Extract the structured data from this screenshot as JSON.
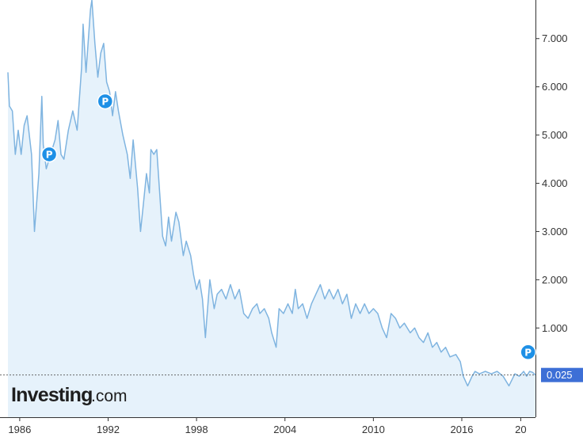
{
  "chart_data": {
    "type": "area",
    "title": "",
    "xlabel": "",
    "ylabel": "",
    "x_ticks": [
      "1986",
      "1992",
      "1998",
      "2004",
      "2010",
      "2016",
      "20"
    ],
    "y_ticks": [
      "1.000",
      "2.000",
      "3.000",
      "4.000",
      "5.000",
      "6.000",
      "7.000"
    ],
    "xlim": [
      1985.2,
      2021.0
    ],
    "ylim": [
      -0.85,
      7.8
    ],
    "grid": false,
    "last_value": 0.025,
    "last_value_label": "0.025",
    "series": [
      {
        "points": [
          [
            1985.2,
            6.3
          ],
          [
            1985.3,
            5.6
          ],
          [
            1985.5,
            5.5
          ],
          [
            1985.7,
            4.6
          ],
          [
            1985.9,
            5.1
          ],
          [
            1986.1,
            4.6
          ],
          [
            1986.3,
            5.2
          ],
          [
            1986.5,
            5.4
          ],
          [
            1986.8,
            4.6
          ],
          [
            1987.0,
            3.0
          ],
          [
            1987.3,
            4.2
          ],
          [
            1987.5,
            5.8
          ],
          [
            1987.6,
            4.8
          ],
          [
            1987.8,
            4.3
          ],
          [
            1988.1,
            4.6
          ],
          [
            1988.4,
            4.9
          ],
          [
            1988.6,
            5.3
          ],
          [
            1988.8,
            4.6
          ],
          [
            1989.0,
            4.5
          ],
          [
            1989.3,
            5.1
          ],
          [
            1989.6,
            5.5
          ],
          [
            1989.9,
            5.1
          ],
          [
            1990.2,
            6.4
          ],
          [
            1990.3,
            7.3
          ],
          [
            1990.5,
            6.3
          ],
          [
            1990.8,
            7.6
          ],
          [
            1990.9,
            7.8
          ],
          [
            1991.1,
            6.9
          ],
          [
            1991.3,
            6.2
          ],
          [
            1991.5,
            6.7
          ],
          [
            1991.7,
            6.9
          ],
          [
            1991.9,
            6.1
          ],
          [
            1992.1,
            5.9
          ],
          [
            1992.3,
            5.4
          ],
          [
            1992.5,
            5.9
          ],
          [
            1992.7,
            5.5
          ],
          [
            1993.0,
            5.0
          ],
          [
            1993.3,
            4.6
          ],
          [
            1993.5,
            4.1
          ],
          [
            1993.7,
            4.9
          ],
          [
            1994.0,
            3.9
          ],
          [
            1994.2,
            3.0
          ],
          [
            1994.4,
            3.6
          ],
          [
            1994.6,
            4.2
          ],
          [
            1994.8,
            3.8
          ],
          [
            1994.9,
            4.7
          ],
          [
            1995.1,
            4.6
          ],
          [
            1995.3,
            4.7
          ],
          [
            1995.5,
            3.8
          ],
          [
            1995.7,
            2.9
          ],
          [
            1995.9,
            2.7
          ],
          [
            1996.1,
            3.3
          ],
          [
            1996.3,
            2.8
          ],
          [
            1996.6,
            3.4
          ],
          [
            1996.8,
            3.2
          ],
          [
            1997.1,
            2.5
          ],
          [
            1997.3,
            2.8
          ],
          [
            1997.6,
            2.5
          ],
          [
            1997.8,
            2.1
          ],
          [
            1998.0,
            1.8
          ],
          [
            1998.2,
            2.0
          ],
          [
            1998.4,
            1.6
          ],
          [
            1998.6,
            0.8
          ],
          [
            1998.7,
            1.2
          ],
          [
            1998.9,
            2.0
          ],
          [
            1999.2,
            1.4
          ],
          [
            1999.4,
            1.7
          ],
          [
            1999.7,
            1.8
          ],
          [
            2000.0,
            1.6
          ],
          [
            2000.3,
            1.9
          ],
          [
            2000.6,
            1.6
          ],
          [
            2000.9,
            1.8
          ],
          [
            2001.2,
            1.3
          ],
          [
            2001.5,
            1.2
          ],
          [
            2001.8,
            1.4
          ],
          [
            2002.1,
            1.5
          ],
          [
            2002.3,
            1.3
          ],
          [
            2002.6,
            1.4
          ],
          [
            2002.9,
            1.2
          ],
          [
            2003.1,
            0.9
          ],
          [
            2003.4,
            0.6
          ],
          [
            2003.6,
            1.4
          ],
          [
            2003.9,
            1.3
          ],
          [
            2004.2,
            1.5
          ],
          [
            2004.5,
            1.3
          ],
          [
            2004.7,
            1.8
          ],
          [
            2004.9,
            1.4
          ],
          [
            2005.2,
            1.5
          ],
          [
            2005.5,
            1.2
          ],
          [
            2005.8,
            1.5
          ],
          [
            2006.1,
            1.7
          ],
          [
            2006.4,
            1.9
          ],
          [
            2006.7,
            1.6
          ],
          [
            2007.0,
            1.8
          ],
          [
            2007.3,
            1.6
          ],
          [
            2007.6,
            1.8
          ],
          [
            2007.9,
            1.5
          ],
          [
            2008.2,
            1.7
          ],
          [
            2008.5,
            1.2
          ],
          [
            2008.8,
            1.5
          ],
          [
            2009.1,
            1.3
          ],
          [
            2009.4,
            1.5
          ],
          [
            2009.7,
            1.3
          ],
          [
            2010.0,
            1.4
          ],
          [
            2010.3,
            1.3
          ],
          [
            2010.6,
            1.0
          ],
          [
            2010.9,
            0.8
          ],
          [
            2011.2,
            1.3
          ],
          [
            2011.5,
            1.2
          ],
          [
            2011.8,
            1.0
          ],
          [
            2012.1,
            1.1
          ],
          [
            2012.5,
            0.9
          ],
          [
            2012.8,
            1.0
          ],
          [
            2013.1,
            0.8
          ],
          [
            2013.4,
            0.7
          ],
          [
            2013.7,
            0.9
          ],
          [
            2014.0,
            0.6
          ],
          [
            2014.3,
            0.7
          ],
          [
            2014.6,
            0.5
          ],
          [
            2014.9,
            0.6
          ],
          [
            2015.2,
            0.4
          ],
          [
            2015.6,
            0.45
          ],
          [
            2015.9,
            0.3
          ],
          [
            2016.1,
            0.0
          ],
          [
            2016.4,
            -0.2
          ],
          [
            2016.7,
            0.0
          ],
          [
            2016.9,
            0.1
          ],
          [
            2017.2,
            0.05
          ],
          [
            2017.6,
            0.1
          ],
          [
            2018.0,
            0.05
          ],
          [
            2018.4,
            0.1
          ],
          [
            2018.8,
            0.0
          ],
          [
            2019.2,
            -0.2
          ],
          [
            2019.6,
            0.05
          ],
          [
            2019.9,
            0.0
          ],
          [
            2020.2,
            0.1
          ],
          [
            2020.4,
            0.0
          ],
          [
            2020.6,
            0.1
          ],
          [
            2020.8,
            0.08
          ],
          [
            2021.0,
            0.025
          ]
        ]
      }
    ],
    "markers": [
      {
        "x": 1988.0,
        "y": 4.6,
        "label": "P"
      },
      {
        "x": 1991.8,
        "y": 5.7,
        "label": "P"
      },
      {
        "x": 2020.5,
        "y": 0.5,
        "label": "P"
      }
    ],
    "colors": {
      "line": "#7fb4e0",
      "fill": "#e6f2fb",
      "last_value_bg": "#3d6fd6",
      "marker": "#1e90e6",
      "ref_line": "#555555",
      "axis": "#333333"
    }
  },
  "logo": {
    "main": "Investing",
    "sub": ".com"
  }
}
